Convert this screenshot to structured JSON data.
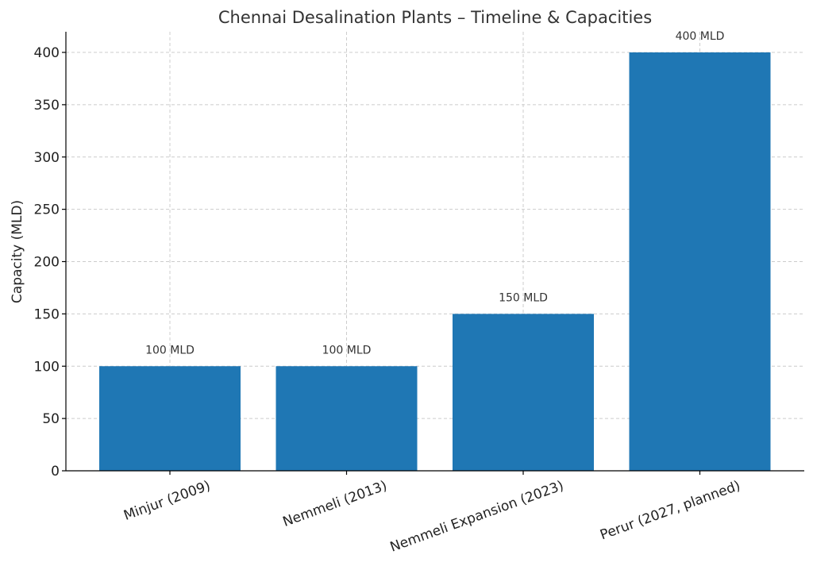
{
  "chart_data": {
    "type": "bar",
    "title": "Chennai Desalination Plants – Timeline & Capacities",
    "xlabel": "",
    "ylabel": "Capacity (MLD)",
    "categories": [
      "Minjur (2009)",
      "Nemmeli (2013)",
      "Nemmeli Expansion (2023)",
      "Perur (2027, planned)"
    ],
    "values": [
      100,
      100,
      150,
      400
    ],
    "data_labels": [
      "100 MLD",
      "100 MLD",
      "150 MLD",
      "400 MLD"
    ],
    "yticks": [
      0,
      50,
      100,
      150,
      200,
      250,
      300,
      350,
      400
    ],
    "ylim": [
      0,
      420
    ],
    "grid": true,
    "bar_color": "#1f77b4"
  }
}
